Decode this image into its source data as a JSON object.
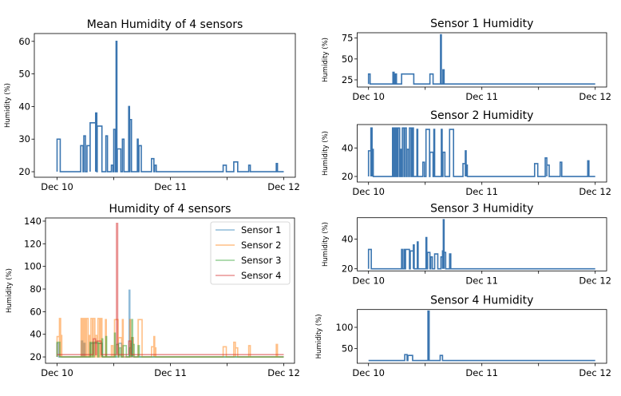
{
  "chart_data": [
    {
      "id": "mean",
      "type": "line",
      "title": "Mean Humidity of 4 sensors",
      "ylabel": "Humidity (%)",
      "ylim": [
        18.3,
        62.4
      ],
      "yticks": [
        20,
        30,
        40,
        50,
        60
      ],
      "xticks": [
        "Dec 10",
        "",
        "Dec 11",
        "",
        "Dec 12"
      ],
      "grid": false,
      "series": [
        {
          "color": "#3a75b0",
          "alpha": 1,
          "baseline": 20,
          "range": [
            "Dec 10 00:00",
            "Dec 12 00:00"
          ],
          "events": [
            [
              "Dec 10 00:00",
              "Dec 10 00:40",
              30
            ],
            [
              "Dec 10 05:00",
              "Dec 10 05:30",
              28
            ],
            [
              "Dec 10 05:40",
              "Dec 10 06:00",
              31
            ],
            [
              "Dec 10 06:20",
              "Dec 10 07:00",
              28
            ],
            [
              "Dec 10 07:00",
              "Dec 10 08:10",
              35
            ],
            [
              "Dec 10 08:10",
              "Dec 10 08:25",
              38
            ],
            [
              "Dec 10 08:30",
              "Dec 10 09:30",
              34
            ],
            [
              "Dec 10 10:20",
              "Dec 10 10:40",
              31
            ],
            [
              "Dec 10 11:30",
              "Dec 10 11:50",
              22
            ],
            [
              "Dec 10 12:00",
              "Dec 10 12:20",
              33
            ],
            [
              "Dec 10 12:30",
              "Dec 10 12:40",
              60
            ],
            [
              "Dec 10 12:45",
              "Dec 10 13:30",
              27
            ],
            [
              "Dec 10 13:50",
              "Dec 10 14:10",
              30
            ],
            [
              "Dec 10 15:10",
              "Dec 10 15:20",
              40
            ],
            [
              "Dec 10 15:25",
              "Dec 10 15:45",
              36
            ],
            [
              "Dec 10 17:00",
              "Dec 10 17:10",
              30
            ],
            [
              "Dec 10 17:20",
              "Dec 10 17:50",
              28
            ],
            [
              "Dec 10 20:00",
              "Dec 10 20:30",
              24
            ],
            [
              "Dec 10 20:40",
              "Dec 10 21:00",
              22
            ],
            [
              "Dec 11 11:10",
              "Dec 11 11:50",
              22
            ],
            [
              "Dec 11 13:25",
              "Dec 11 14:15",
              23
            ],
            [
              "Dec 11 16:35",
              "Dec 11 16:55",
              22
            ],
            [
              "Dec 11 22:25",
              "Dec 11 22:40",
              22.5
            ]
          ]
        }
      ]
    },
    {
      "id": "combined",
      "type": "line",
      "title": "Humidity of 4 sensors",
      "ylabel": "Humidity (%)",
      "ylim": [
        14.4,
        142.8
      ],
      "yticks": [
        20,
        40,
        60,
        80,
        100,
        120,
        140
      ],
      "xticks": [
        "Dec 10",
        "",
        "Dec 11",
        "",
        "Dec 12"
      ],
      "grid": false,
      "legend": "top-right",
      "series": [
        {
          "name": "Sensor 1",
          "ref": "s1",
          "color": "#1f77b4",
          "alpha": 0.5
        },
        {
          "name": "Sensor 2",
          "ref": "s2",
          "color": "#ff7f0e",
          "alpha": 0.5
        },
        {
          "name": "Sensor 3",
          "ref": "s3",
          "color": "#2ca02c",
          "alpha": 0.5
        },
        {
          "name": "Sensor 4",
          "ref": "s4",
          "color": "#d62728",
          "alpha": 0.5
        }
      ]
    },
    {
      "id": "s1",
      "type": "line",
      "title": "Sensor 1 Humidity",
      "ylabel": "Humidity (%)",
      "ylim": [
        16.4,
        81.4
      ],
      "yticks": [
        25,
        50,
        75
      ],
      "xticks": [
        "Dec 10",
        "",
        "Dec 11",
        "",
        "Dec 12"
      ],
      "grid": false,
      "series": [
        {
          "color": "#3a75b0",
          "alpha": 1,
          "baseline": 20,
          "range": [
            "Dec 10 00:00",
            "Dec 12 00:00"
          ],
          "events": [
            [
              "Dec 10 00:00",
              "Dec 10 00:20",
              32
            ],
            [
              "Dec 10 05:10",
              "Dec 10 05:25",
              34
            ],
            [
              "Dec 10 05:40",
              "Dec 10 05:55",
              32
            ],
            [
              "Dec 10 07:00",
              "Dec 10 09:35",
              32
            ],
            [
              "Dec 10 13:00",
              "Dec 10 13:40",
              32
            ],
            [
              "Dec 10 15:15",
              "Dec 10 15:25",
              79
            ],
            [
              "Dec 10 15:45",
              "Dec 10 16:00",
              37
            ]
          ]
        }
      ]
    },
    {
      "id": "s2",
      "type": "line",
      "title": "Sensor 2 Humidity",
      "ylabel": "Humidity (%)",
      "ylim": [
        16.1,
        56.4
      ],
      "yticks": [
        20,
        40
      ],
      "xticks": [
        "Dec 10",
        "",
        "Dec 11",
        "",
        "Dec 12"
      ],
      "grid": false,
      "series": [
        {
          "color": "#3a75b0",
          "alpha": 1,
          "baseline": 20,
          "range": [
            "Dec 10 00:00",
            "Dec 12 00:00"
          ],
          "events": [
            [
              "Dec 10 00:00",
              "Dec 10 00:30",
              38
            ],
            [
              "Dec 10 00:30",
              "Dec 10 00:45",
              54
            ],
            [
              "Dec 10 00:45",
              "Dec 10 01:00",
              39
            ],
            [
              "Dec 10 05:05",
              "Dec 10 05:15",
              54
            ],
            [
              "Dec 10 05:25",
              "Dec 10 05:40",
              54
            ],
            [
              "Dec 10 05:50",
              "Dec 10 06:05",
              54
            ],
            [
              "Dec 10 06:15",
              "Dec 10 06:35",
              54
            ],
            [
              "Dec 10 06:45",
              "Dec 10 07:00",
              39
            ],
            [
              "Dec 10 07:10",
              "Dec 10 07:30",
              54
            ],
            [
              "Dec 10 07:40",
              "Dec 10 08:00",
              54
            ],
            [
              "Dec 10 08:10",
              "Dec 10 08:30",
              39
            ],
            [
              "Dec 10 08:40",
              "Dec 10 09:00",
              54
            ],
            [
              "Dec 10 09:15",
              "Dec 10 09:30",
              54
            ],
            [
              "Dec 10 10:15",
              "Dec 10 10:25",
              53
            ],
            [
              "Dec 10 11:30",
              "Dec 10 11:50",
              30
            ],
            [
              "Dec 10 12:10",
              "Dec 10 12:55",
              53
            ],
            [
              "Dec 10 13:00",
              "Dec 10 13:40",
              37
            ],
            [
              "Dec 10 13:50",
              "Dec 10 14:00",
              53
            ],
            [
              "Dec 10 15:25",
              "Dec 10 15:35",
              53
            ],
            [
              "Dec 10 15:45",
              "Dec 10 16:10",
              37
            ],
            [
              "Dec 10 17:10",
              "Dec 10 18:00",
              53
            ],
            [
              "Dec 10 20:00",
              "Dec 10 20:30",
              29
            ],
            [
              "Dec 10 20:30",
              "Dec 10 20:40",
              38
            ],
            [
              "Dec 10 20:40",
              "Dec 10 20:55",
              28
            ],
            [
              "Dec 11 11:10",
              "Dec 11 11:50",
              29
            ],
            [
              "Dec 11 13:25",
              "Dec 11 13:45",
              33
            ],
            [
              "Dec 11 13:45",
              "Dec 11 14:15",
              28
            ],
            [
              "Dec 11 16:35",
              "Dec 11 16:55",
              30
            ],
            [
              "Dec 11 22:25",
              "Dec 11 22:40",
              31
            ]
          ]
        }
      ]
    },
    {
      "id": "s3",
      "type": "line",
      "title": "Sensor 3 Humidity",
      "ylabel": "Humidity (%)",
      "ylim": [
        18.6,
        54.3
      ],
      "yticks": [
        20,
        40
      ],
      "xticks": [
        "Dec 10",
        "",
        "Dec 11",
        "",
        "Dec 12"
      ],
      "grid": false,
      "series": [
        {
          "color": "#3a75b0",
          "alpha": 1,
          "baseline": 20,
          "range": [
            "Dec 10 00:00",
            "Dec 12 00:00"
          ],
          "events": [
            [
              "Dec 10 00:00",
              "Dec 10 00:35",
              33
            ],
            [
              "Dec 10 07:00",
              "Dec 10 07:10",
              33
            ],
            [
              "Dec 10 07:30",
              "Dec 10 07:40",
              33
            ],
            [
              "Dec 10 07:50",
              "Dec 10 08:40",
              33
            ],
            [
              "Dec 10 08:50",
              "Dec 10 09:30",
              32
            ],
            [
              "Dec 10 09:30",
              "Dec 10 09:40",
              36
            ],
            [
              "Dec 10 10:20",
              "Dec 10 10:30",
              38
            ],
            [
              "Dec 10 12:10",
              "Dec 10 12:20",
              41
            ],
            [
              "Dec 10 12:30",
              "Dec 10 13:00",
              31
            ],
            [
              "Dec 10 13:10",
              "Dec 10 13:30",
              28
            ],
            [
              "Dec 10 14:00",
              "Dec 10 14:40",
              30
            ],
            [
              "Dec 10 15:20",
              "Dec 10 15:40",
              28
            ],
            [
              "Dec 10 15:40",
              "Dec 10 15:50",
              32
            ],
            [
              "Dec 10 15:50",
              "Dec 10 16:00",
              53
            ],
            [
              "Dec 10 16:00",
              "Dec 10 16:20",
              31
            ],
            [
              "Dec 10 17:10",
              "Dec 10 17:25",
              30
            ]
          ]
        }
      ]
    },
    {
      "id": "s4",
      "type": "line",
      "title": "Sensor 4 Humidity",
      "ylabel": "Humidity (%)",
      "ylim": [
        15.6,
        141.8
      ],
      "yticks": [
        50,
        100
      ],
      "xticks": [
        "Dec 10",
        "",
        "Dec 11",
        "",
        "Dec 12"
      ],
      "grid": false,
      "series": [
        {
          "color": "#3a75b0",
          "alpha": 1,
          "baseline": 22,
          "range": [
            "Dec 10 00:00",
            "Dec 12 00:00"
          ],
          "events": [
            [
              "Dec 10 07:40",
              "Dec 10 08:10",
              36
            ],
            [
              "Dec 10 08:20",
              "Dec 10 09:20",
              34
            ],
            [
              "Dec 10 12:35",
              "Dec 10 12:50",
              138
            ],
            [
              "Dec 10 15:10",
              "Dec 10 15:40",
              34
            ]
          ]
        }
      ]
    }
  ]
}
